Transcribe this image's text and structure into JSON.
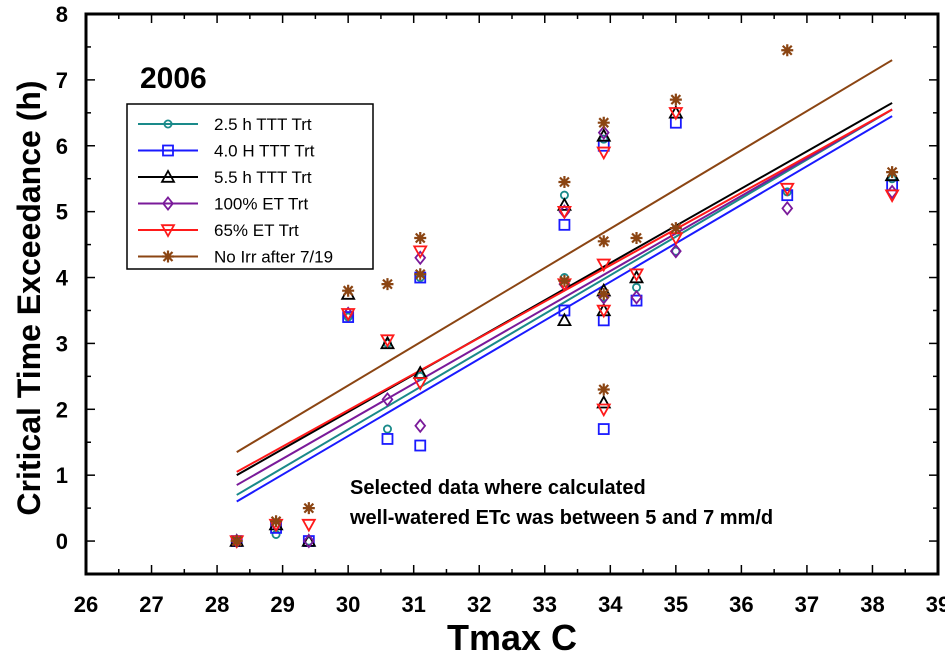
{
  "chart_data": {
    "type": "scatter",
    "year_label": "2006",
    "xlabel": "Tmax C",
    "ylabel": "Critical Time Exceedance (h)",
    "xlim": [
      26,
      39
    ],
    "ylim": [
      -0.5,
      8
    ],
    "x_ticks": [
      26,
      27,
      28,
      29,
      30,
      31,
      32,
      33,
      34,
      35,
      36,
      37,
      38,
      39
    ],
    "y_ticks": [
      0,
      1,
      2,
      3,
      4,
      5,
      6,
      7,
      8
    ],
    "annotation": [
      "Selected data where calculated",
      "well-watered ETc was between 5 and 7 mm/d"
    ],
    "legend_position": "upper-left",
    "series": [
      {
        "name": "2.5 h TTT Trt",
        "marker": "circle",
        "color": "#1a8a8a",
        "points": [
          [
            28.3,
            0.0
          ],
          [
            28.9,
            0.1
          ],
          [
            29.4,
            0.0
          ],
          [
            30.0,
            3.4
          ],
          [
            30.6,
            1.7
          ],
          [
            30.6,
            3.0
          ],
          [
            31.1,
            4.0
          ],
          [
            31.1,
            2.5
          ],
          [
            33.3,
            4.0
          ],
          [
            33.3,
            5.25
          ],
          [
            33.9,
            3.7
          ],
          [
            33.9,
            6.1
          ],
          [
            34.4,
            3.85
          ],
          [
            35.0,
            4.4
          ],
          [
            36.7,
            5.3
          ],
          [
            38.3,
            5.5
          ]
        ],
        "fit": [
          [
            28.3,
            0.7
          ],
          [
            38.3,
            6.55
          ]
        ]
      },
      {
        "name": "4.0 H TTT Trt",
        "marker": "square",
        "color": "#1a1aff",
        "points": [
          [
            28.3,
            0.0
          ],
          [
            28.9,
            0.2
          ],
          [
            29.4,
            0.0
          ],
          [
            30.0,
            3.4
          ],
          [
            30.6,
            1.55
          ],
          [
            31.1,
            1.45
          ],
          [
            31.1,
            4.0
          ],
          [
            33.3,
            3.5
          ],
          [
            33.3,
            4.8
          ],
          [
            33.9,
            1.7
          ],
          [
            33.9,
            3.35
          ],
          [
            33.9,
            6.0
          ],
          [
            34.4,
            3.65
          ],
          [
            35.0,
            6.35
          ],
          [
            36.7,
            5.25
          ],
          [
            38.3,
            5.4
          ]
        ],
        "fit": [
          [
            28.3,
            0.6
          ],
          [
            38.3,
            6.45
          ]
        ]
      },
      {
        "name": "5.5 h TTT Trt",
        "marker": "triangle-up",
        "color": "#000000",
        "points": [
          [
            28.3,
            0.0
          ],
          [
            28.9,
            0.25
          ],
          [
            29.4,
            0.0
          ],
          [
            30.0,
            3.75
          ],
          [
            30.6,
            3.0
          ],
          [
            31.1,
            2.55
          ],
          [
            33.3,
            3.35
          ],
          [
            33.3,
            5.1
          ],
          [
            33.9,
            2.1
          ],
          [
            33.9,
            3.5
          ],
          [
            33.9,
            3.8
          ],
          [
            33.9,
            6.15
          ],
          [
            34.4,
            4.0
          ],
          [
            35.0,
            6.5
          ],
          [
            38.3,
            5.55
          ]
        ],
        "fit": [
          [
            28.3,
            1.0
          ],
          [
            38.3,
            6.65
          ]
        ]
      },
      {
        "name": "100% ET Trt",
        "marker": "diamond",
        "color": "#7a1a9a",
        "points": [
          [
            28.3,
            0.0
          ],
          [
            28.9,
            0.25
          ],
          [
            29.4,
            0.0
          ],
          [
            30.0,
            3.45
          ],
          [
            30.6,
            2.15
          ],
          [
            31.1,
            1.75
          ],
          [
            31.1,
            4.3
          ],
          [
            33.3,
            3.9
          ],
          [
            33.3,
            5.0
          ],
          [
            33.9,
            3.7
          ],
          [
            33.9,
            6.2
          ],
          [
            34.4,
            3.7
          ],
          [
            35.0,
            4.4
          ],
          [
            36.7,
            5.05
          ],
          [
            38.3,
            5.3
          ]
        ],
        "fit": [
          [
            28.3,
            0.85
          ],
          [
            38.3,
            6.55
          ]
        ]
      },
      {
        "name": "65% ET Trt",
        "marker": "triangle-down",
        "color": "#ff1a1a",
        "points": [
          [
            28.3,
            0.0
          ],
          [
            28.9,
            0.25
          ],
          [
            29.4,
            0.25
          ],
          [
            30.0,
            3.45
          ],
          [
            30.6,
            3.05
          ],
          [
            31.1,
            2.4
          ],
          [
            31.1,
            4.4
          ],
          [
            33.3,
            3.9
          ],
          [
            33.3,
            5.0
          ],
          [
            33.9,
            2.0
          ],
          [
            33.9,
            3.5
          ],
          [
            33.9,
            4.2
          ],
          [
            33.9,
            5.9
          ],
          [
            34.4,
            4.05
          ],
          [
            35.0,
            4.6
          ],
          [
            35.0,
            6.5
          ],
          [
            36.7,
            5.35
          ],
          [
            38.3,
            5.25
          ]
        ],
        "fit": [
          [
            28.3,
            1.05
          ],
          [
            38.3,
            6.55
          ]
        ]
      },
      {
        "name": "No Irr after 7/19",
        "marker": "asterisk",
        "color": "#8b4513",
        "points": [
          [
            28.3,
            0.0
          ],
          [
            28.9,
            0.3
          ],
          [
            29.4,
            0.5
          ],
          [
            30.0,
            3.8
          ],
          [
            30.6,
            3.9
          ],
          [
            31.1,
            4.05
          ],
          [
            31.1,
            4.6
          ],
          [
            33.3,
            3.95
          ],
          [
            33.3,
            5.45
          ],
          [
            33.9,
            2.3
          ],
          [
            33.9,
            3.75
          ],
          [
            33.9,
            4.55
          ],
          [
            33.9,
            6.35
          ],
          [
            34.4,
            4.6
          ],
          [
            35.0,
            4.75
          ],
          [
            35.0,
            6.7
          ],
          [
            36.7,
            7.45
          ],
          [
            38.3,
            5.6
          ]
        ],
        "fit": [
          [
            28.3,
            1.35
          ],
          [
            38.3,
            7.3
          ]
        ]
      }
    ]
  }
}
